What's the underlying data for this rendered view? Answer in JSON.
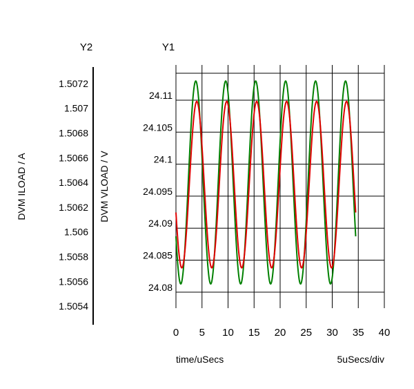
{
  "chart_data": {
    "type": "line",
    "axis_titles": {
      "y2": "Y2",
      "y1": "Y1"
    },
    "xlabel": "time/uSecs",
    "x_div_label": "5uSecs/div",
    "y1label": "DVM VLOAD / V",
    "y2label": "DVM ILOAD / A",
    "xlim": [
      0,
      40
    ],
    "x_ticks": [
      "0",
      "5",
      "10",
      "15",
      "20",
      "25",
      "30",
      "35",
      "40"
    ],
    "y1lim": [
      24.0775,
      24.1155
    ],
    "y1_ticks": [
      "24.08",
      "24.085",
      "24.09",
      "24.095",
      "24.1",
      "24.105",
      "24.11"
    ],
    "y2lim": [
      1.50525,
      1.50735
    ],
    "y2_ticks": [
      "1.5054",
      "1.5056",
      "1.5058",
      "1.506",
      "1.5062",
      "1.5064",
      "1.5066",
      "1.5068",
      "1.507",
      "1.5072"
    ],
    "grid": true,
    "series": [
      {
        "axis": "y2",
        "color": "#008000",
        "period": 5.75,
        "x_start": 0,
        "x_end": 34.5,
        "x_peak": 3.8,
        "min": 1.50558,
        "max": 1.50722
      },
      {
        "axis": "y1",
        "color": "#e00000",
        "period": 5.75,
        "x_start": 0,
        "x_end": 34.5,
        "x_peak": 4.0,
        "min": 24.0838,
        "max": 24.1098
      }
    ]
  }
}
